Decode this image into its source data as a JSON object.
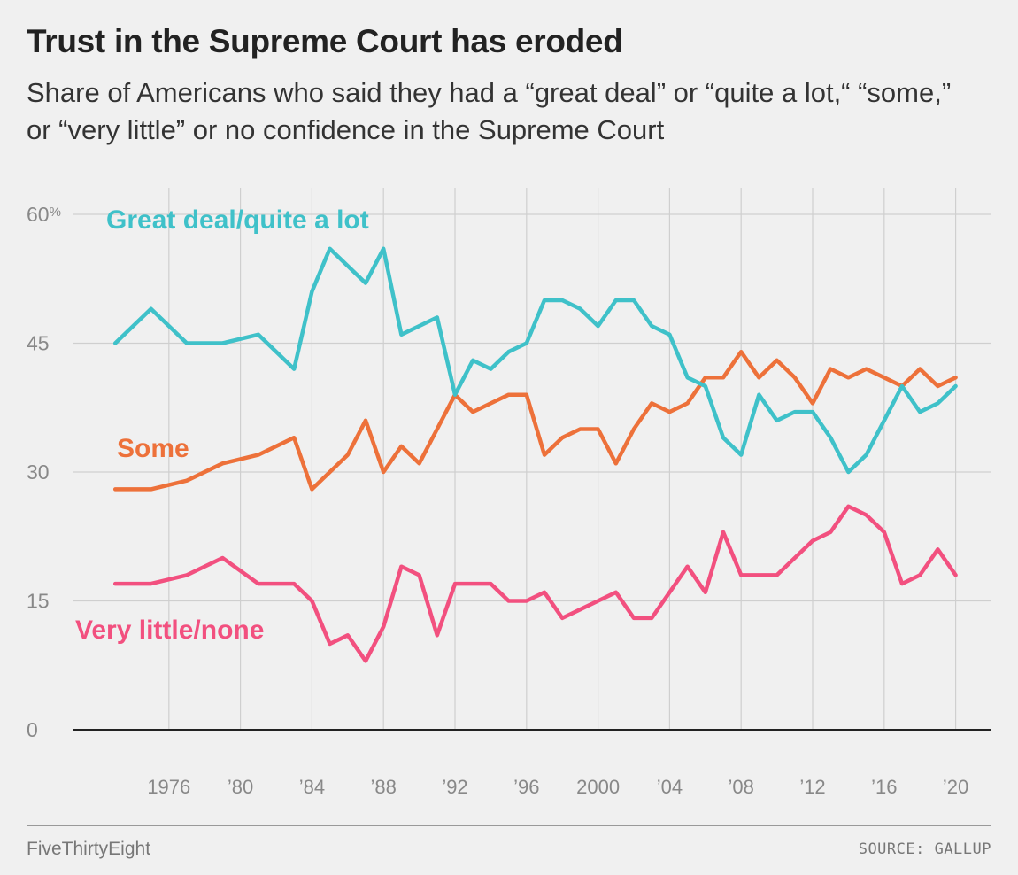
{
  "chart_data": {
    "type": "line",
    "title": "Trust in the Supreme Court has eroded",
    "subtitle": "Share of Americans who said they had a “great deal” or “quite a lot,“ “some,” or “very little” or no confidence in the Supreme Court",
    "xlabel": "",
    "ylabel": "",
    "xlim": [
      1972,
      2022
    ],
    "ylim": [
      0,
      60
    ],
    "grid": true,
    "x_ticks": [
      {
        "value": 1976,
        "label": "1976"
      },
      {
        "value": 1980,
        "label": "’80"
      },
      {
        "value": 1984,
        "label": "’84"
      },
      {
        "value": 1988,
        "label": "’88"
      },
      {
        "value": 1992,
        "label": "’92"
      },
      {
        "value": 1996,
        "label": "’96"
      },
      {
        "value": 2000,
        "label": "2000"
      },
      {
        "value": 2004,
        "label": "’04"
      },
      {
        "value": 2008,
        "label": "’08"
      },
      {
        "value": 2012,
        "label": "’12"
      },
      {
        "value": 2016,
        "label": "’16"
      },
      {
        "value": 2020,
        "label": "’20"
      }
    ],
    "y_ticks": [
      {
        "value": 0,
        "label": "0"
      },
      {
        "value": 15,
        "label": "15"
      },
      {
        "value": 30,
        "label": "30"
      },
      {
        "value": 45,
        "label": "45"
      },
      {
        "value": 60,
        "label": "60%"
      }
    ],
    "series": [
      {
        "name": "Great deal/quite a lot",
        "color": "#3fc1c9",
        "points": [
          [
            1973,
            45
          ],
          [
            1975,
            49
          ],
          [
            1977,
            45
          ],
          [
            1979,
            45
          ],
          [
            1981,
            46
          ],
          [
            1983,
            42
          ],
          [
            1984,
            51
          ],
          [
            1985,
            56
          ],
          [
            1986,
            54
          ],
          [
            1987,
            52
          ],
          [
            1988,
            56
          ],
          [
            1989,
            46
          ],
          [
            1990,
            47
          ],
          [
            1991,
            48
          ],
          [
            1992,
            39
          ],
          [
            1993,
            43
          ],
          [
            1994,
            42
          ],
          [
            1995,
            44
          ],
          [
            1996,
            45
          ],
          [
            1997,
            50
          ],
          [
            1998,
            50
          ],
          [
            1999,
            49
          ],
          [
            2000,
            47
          ],
          [
            2001,
            50
          ],
          [
            2002,
            50
          ],
          [
            2003,
            47
          ],
          [
            2004,
            46
          ],
          [
            2005,
            41
          ],
          [
            2006,
            40
          ],
          [
            2007,
            34
          ],
          [
            2008,
            32
          ],
          [
            2009,
            39
          ],
          [
            2010,
            36
          ],
          [
            2011,
            37
          ],
          [
            2012,
            37
          ],
          [
            2013,
            34
          ],
          [
            2014,
            30
          ],
          [
            2015,
            32
          ],
          [
            2016,
            36
          ],
          [
            2017,
            40
          ],
          [
            2018,
            37
          ],
          [
            2019,
            38
          ],
          [
            2020,
            40
          ]
        ]
      },
      {
        "name": "Some",
        "color": "#ed713a",
        "points": [
          [
            1973,
            28
          ],
          [
            1975,
            28
          ],
          [
            1977,
            29
          ],
          [
            1979,
            31
          ],
          [
            1981,
            32
          ],
          [
            1983,
            34
          ],
          [
            1984,
            28
          ],
          [
            1985,
            30
          ],
          [
            1986,
            32
          ],
          [
            1987,
            36
          ],
          [
            1988,
            30
          ],
          [
            1989,
            33
          ],
          [
            1990,
            31
          ],
          [
            1991,
            35
          ],
          [
            1992,
            39
          ],
          [
            1993,
            37
          ],
          [
            1994,
            38
          ],
          [
            1995,
            39
          ],
          [
            1996,
            39
          ],
          [
            1997,
            32
          ],
          [
            1998,
            34
          ],
          [
            1999,
            35
          ],
          [
            2000,
            35
          ],
          [
            2001,
            31
          ],
          [
            2002,
            35
          ],
          [
            2003,
            38
          ],
          [
            2004,
            37
          ],
          [
            2005,
            38
          ],
          [
            2006,
            41
          ],
          [
            2007,
            41
          ],
          [
            2008,
            44
          ],
          [
            2009,
            41
          ],
          [
            2010,
            43
          ],
          [
            2011,
            41
          ],
          [
            2012,
            38
          ],
          [
            2013,
            42
          ],
          [
            2014,
            41
          ],
          [
            2015,
            42
          ],
          [
            2016,
            41
          ],
          [
            2017,
            40
          ],
          [
            2018,
            42
          ],
          [
            2019,
            40
          ],
          [
            2020,
            41
          ]
        ]
      },
      {
        "name": "Very little/none",
        "color": "#f2507f",
        "points": [
          [
            1973,
            17
          ],
          [
            1975,
            17
          ],
          [
            1977,
            18
          ],
          [
            1979,
            20
          ],
          [
            1981,
            17
          ],
          [
            1983,
            17
          ],
          [
            1984,
            15
          ],
          [
            1985,
            10
          ],
          [
            1986,
            11
          ],
          [
            1987,
            8
          ],
          [
            1988,
            12
          ],
          [
            1989,
            19
          ],
          [
            1990,
            18
          ],
          [
            1991,
            11
          ],
          [
            1992,
            17
          ],
          [
            1993,
            17
          ],
          [
            1994,
            17
          ],
          [
            1995,
            15
          ],
          [
            1996,
            15
          ],
          [
            1997,
            16
          ],
          [
            1998,
            13
          ],
          [
            1999,
            14
          ],
          [
            2000,
            15
          ],
          [
            2001,
            16
          ],
          [
            2002,
            13
          ],
          [
            2003,
            13
          ],
          [
            2004,
            16
          ],
          [
            2005,
            19
          ],
          [
            2006,
            16
          ],
          [
            2007,
            23
          ],
          [
            2008,
            18
          ],
          [
            2009,
            18
          ],
          [
            2010,
            18
          ],
          [
            2011,
            20
          ],
          [
            2012,
            22
          ],
          [
            2013,
            23
          ],
          [
            2014,
            26
          ],
          [
            2015,
            25
          ],
          [
            2016,
            23
          ],
          [
            2017,
            17
          ],
          [
            2018,
            18
          ],
          [
            2019,
            21
          ],
          [
            2020,
            18
          ]
        ]
      }
    ]
  },
  "footer": {
    "brand": "FiveThirtyEight",
    "source": "SOURCE: GALLUP"
  }
}
